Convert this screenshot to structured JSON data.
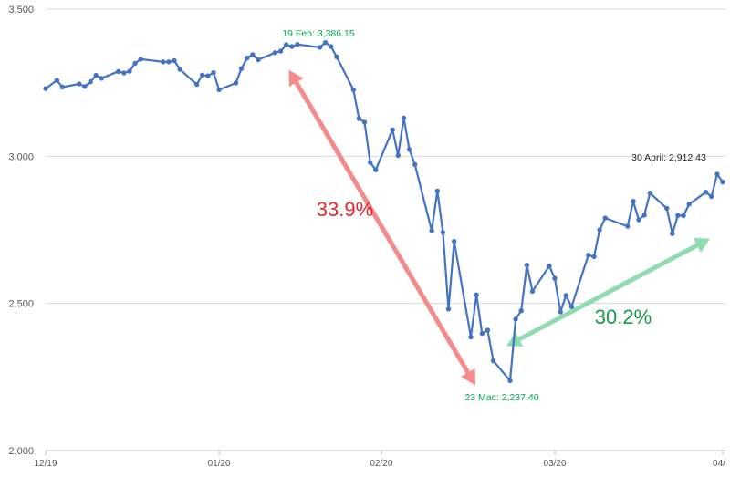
{
  "chart_data": {
    "type": "line",
    "title": "",
    "xlabel": "",
    "ylabel": "",
    "ylim": [
      2000,
      3500
    ],
    "grid": true,
    "y_ticks": [
      2000,
      2500,
      3000,
      3500
    ],
    "y_tick_labels": [
      "2,000",
      "2,500",
      "3,000",
      "3,500"
    ],
    "x_tick_positions": [
      "2019-12-31",
      "2020-01-31",
      "2020-02-29",
      "2020-03-31",
      "2020-04-30"
    ],
    "x_tick_labels": [
      "12/19",
      "01/20",
      "02/20",
      "03/20",
      "04/"
    ],
    "series": [
      {
        "color": "#4472c4",
        "points": [
          [
            "2019-12-31",
            3230
          ],
          [
            "2020-01-02",
            3258
          ],
          [
            "2020-01-03",
            3235
          ],
          [
            "2020-01-06",
            3246
          ],
          [
            "2020-01-07",
            3237
          ],
          [
            "2020-01-08",
            3253
          ],
          [
            "2020-01-09",
            3275
          ],
          [
            "2020-01-10",
            3265
          ],
          [
            "2020-01-13",
            3288
          ],
          [
            "2020-01-14",
            3283
          ],
          [
            "2020-01-15",
            3289
          ],
          [
            "2020-01-16",
            3316
          ],
          [
            "2020-01-17",
            3330
          ],
          [
            "2020-01-21",
            3321
          ],
          [
            "2020-01-22",
            3321
          ],
          [
            "2020-01-23",
            3325
          ],
          [
            "2020-01-24",
            3295
          ],
          [
            "2020-01-27",
            3244
          ],
          [
            "2020-01-28",
            3276
          ],
          [
            "2020-01-29",
            3273
          ],
          [
            "2020-01-30",
            3284
          ],
          [
            "2020-01-31",
            3226
          ],
          [
            "2020-02-03",
            3249
          ],
          [
            "2020-02-04",
            3298
          ],
          [
            "2020-02-05",
            3334
          ],
          [
            "2020-02-06",
            3345
          ],
          [
            "2020-02-07",
            3328
          ],
          [
            "2020-02-10",
            3352
          ],
          [
            "2020-02-11",
            3357
          ],
          [
            "2020-02-12",
            3379
          ],
          [
            "2020-02-13",
            3373
          ],
          [
            "2020-02-14",
            3380
          ],
          [
            "2020-02-18",
            3370
          ],
          [
            "2020-02-19",
            3386.15
          ],
          [
            "2020-02-20",
            3373
          ],
          [
            "2020-02-21",
            3338
          ],
          [
            "2020-02-24",
            3226
          ],
          [
            "2020-02-25",
            3128
          ],
          [
            "2020-02-26",
            3116
          ],
          [
            "2020-02-27",
            2979
          ],
          [
            "2020-02-28",
            2954
          ],
          [
            "2020-03-02",
            3090
          ],
          [
            "2020-03-03",
            3003
          ],
          [
            "2020-03-04",
            3130
          ],
          [
            "2020-03-05",
            3023
          ],
          [
            "2020-03-06",
            2972
          ],
          [
            "2020-03-09",
            2747
          ],
          [
            "2020-03-10",
            2882
          ],
          [
            "2020-03-11",
            2741
          ],
          [
            "2020-03-12",
            2481
          ],
          [
            "2020-03-13",
            2711
          ],
          [
            "2020-03-16",
            2386
          ],
          [
            "2020-03-17",
            2529
          ],
          [
            "2020-03-18",
            2398
          ],
          [
            "2020-03-19",
            2409
          ],
          [
            "2020-03-20",
            2305
          ],
          [
            "2020-03-23",
            2237.4
          ],
          [
            "2020-03-24",
            2447
          ],
          [
            "2020-03-25",
            2475
          ],
          [
            "2020-03-26",
            2630
          ],
          [
            "2020-03-27",
            2541
          ],
          [
            "2020-03-30",
            2627
          ],
          [
            "2020-03-31",
            2585
          ],
          [
            "2020-04-01",
            2471
          ],
          [
            "2020-04-02",
            2527
          ],
          [
            "2020-04-03",
            2489
          ],
          [
            "2020-04-06",
            2664
          ],
          [
            "2020-04-07",
            2659
          ],
          [
            "2020-04-08",
            2750
          ],
          [
            "2020-04-09",
            2790
          ],
          [
            "2020-04-13",
            2762
          ],
          [
            "2020-04-14",
            2847
          ],
          [
            "2020-04-15",
            2784
          ],
          [
            "2020-04-16",
            2800
          ],
          [
            "2020-04-17",
            2875
          ],
          [
            "2020-04-20",
            2823
          ],
          [
            "2020-04-21",
            2737
          ],
          [
            "2020-04-22",
            2799
          ],
          [
            "2020-04-23",
            2798
          ],
          [
            "2020-04-24",
            2837
          ],
          [
            "2020-04-27",
            2878
          ],
          [
            "2020-04-28",
            2863
          ],
          [
            "2020-04-29",
            2939
          ],
          [
            "2020-04-30",
            2912.43
          ]
        ]
      }
    ],
    "annotations": {
      "peak": {
        "date": "2020-02-19",
        "value": 3386.15,
        "text": "19 Feb: 3,386.15",
        "color": "#00a651"
      },
      "trough": {
        "date": "2020-03-23",
        "value": 2237.4,
        "text": "23 Mac: 2,237.40",
        "color": "#00a651"
      },
      "last": {
        "date": "2020-04-30",
        "value": 2912.43,
        "text": "30 April: 2,912.43",
        "color": "#262626"
      },
      "decline": {
        "text": "33.9%",
        "label_color": "#e3262e",
        "arrow_color": "#f48a8a"
      },
      "recovery": {
        "text": "30.2%",
        "label_color": "#1a9a4a",
        "arrow_color": "#8edcb0"
      }
    }
  }
}
